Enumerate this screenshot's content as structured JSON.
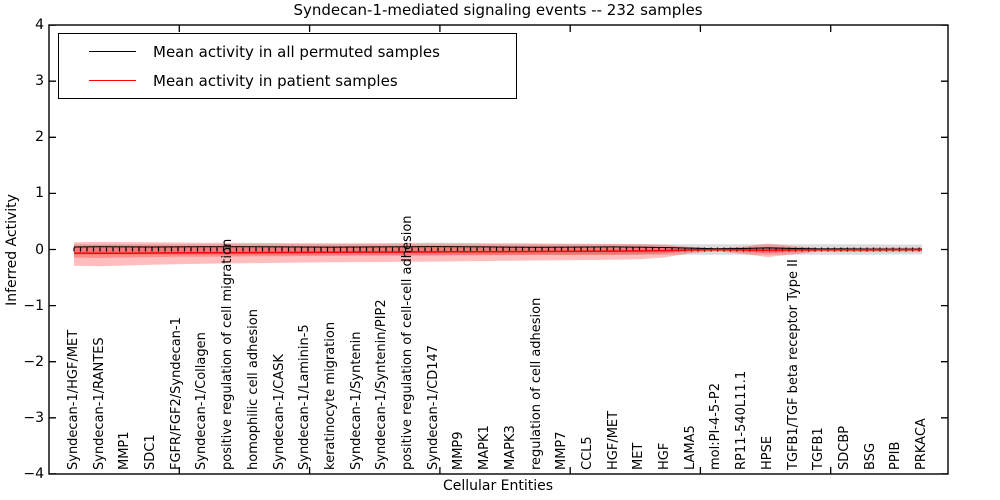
{
  "title": "Syndecan-1-mediated signaling events -- 232 samples",
  "legend": {
    "items": [
      {
        "label": "Mean activity in all permuted samples",
        "color": "#000000"
      },
      {
        "label": "Mean activity in patient samples",
        "color": "#ff0000"
      }
    ]
  },
  "axes": {
    "ylabel": "Inferred Activity",
    "xlabel": "Cellular Entities",
    "yticks": [
      "4",
      "3",
      "2",
      "1",
      "0",
      "−1",
      "−2",
      "−3",
      "−4"
    ],
    "ytick_values": [
      4,
      3,
      2,
      1,
      0,
      -1,
      -2,
      -3,
      -4
    ]
  },
  "chart_data": {
    "type": "line",
    "title": "Syndecan-1-mediated signaling events -- 232 samples",
    "xlabel": "Cellular Entities",
    "ylabel": "Inferred Activity",
    "ylim": [
      -4,
      4
    ],
    "grid": false,
    "legend_position": "upper left",
    "zero_line": 0,
    "categories": [
      "Syndecan-1/HGF/MET",
      "Syndecan-1/RANTES",
      "MMP1",
      "SDC1",
      "FGFR/FGF2/Syndecan-1",
      "Syndecan-1/Collagen",
      "positive regulation of cell migration",
      "homophilic cell adhesion",
      "Syndecan-1/CASK",
      "Syndecan-1/Laminin-5",
      "keratinocyte migration",
      "Syndecan-1/Syntenin",
      "Syndecan-1/Syntenin/PIP2",
      "positive regulation of cell-cell adhesion",
      "Syndecan-1/CD147",
      "MMP9",
      "MAPK1",
      "MAPK3",
      "regulation of cell adhesion",
      "MMP7",
      "CCL5",
      "HGF/MET",
      "MET",
      "HGF",
      "LAMA5",
      "mol:PI-4-5-P2",
      "RP11-540L11.1",
      "HPSE",
      "TGFB1/TGF beta receptor Type II",
      "TGFB1",
      "SDCBP",
      "BSG",
      "PPIB",
      "PRKACA"
    ],
    "series": [
      {
        "name": "Mean activity in all permuted samples",
        "color": "#000000",
        "values": [
          0.045,
          0.048,
          0.046,
          0.044,
          0.046,
          0.048,
          0.05,
          0.048,
          0.046,
          0.044,
          0.043,
          0.044,
          0.046,
          0.05,
          0.052,
          0.05,
          0.046,
          0.042,
          0.04,
          0.042,
          0.044,
          0.046,
          0.042,
          0.036,
          0.025,
          0.015,
          0.018,
          0.028,
          0.018,
          0.01,
          0.01,
          0.008,
          0.008,
          0.008
        ]
      },
      {
        "name": "Mean activity in patient samples",
        "color": "#ff0000",
        "values": [
          -0.065,
          -0.068,
          -0.066,
          -0.063,
          -0.061,
          -0.059,
          -0.057,
          -0.055,
          -0.053,
          -0.051,
          -0.049,
          -0.047,
          -0.046,
          -0.045,
          -0.043,
          -0.041,
          -0.039,
          -0.037,
          -0.035,
          -0.033,
          -0.031,
          -0.029,
          -0.026,
          -0.02,
          -0.008,
          -0.002,
          -0.008,
          -0.015,
          -0.008,
          -0.003,
          -0.004,
          -0.003,
          -0.002,
          -0.001
        ]
      }
    ],
    "bands": [
      {
        "name": "permuted-samples-range",
        "color": "rgba(0,0,0,0.14)",
        "upper": [
          0.095,
          0.095,
          0.095,
          0.095,
          0.095,
          0.095,
          0.095,
          0.095,
          0.095,
          0.095,
          0.095,
          0.095,
          0.095,
          0.095,
          0.095,
          0.095,
          0.095,
          0.095,
          0.095,
          0.095,
          0.095,
          0.095,
          0.095,
          0.095,
          0.095,
          0.095,
          0.095,
          0.095,
          0.095,
          0.095,
          0.093,
          0.092,
          0.09,
          0.088
        ],
        "lower": [
          -0.095,
          -0.095,
          -0.095,
          -0.095,
          -0.095,
          -0.095,
          -0.095,
          -0.095,
          -0.095,
          -0.095,
          -0.095,
          -0.095,
          -0.095,
          -0.095,
          -0.095,
          -0.095,
          -0.095,
          -0.095,
          -0.095,
          -0.095,
          -0.095,
          -0.095,
          -0.095,
          -0.095,
          -0.095,
          -0.095,
          -0.095,
          -0.095,
          -0.095,
          -0.095,
          -0.093,
          -0.092,
          -0.09,
          -0.088
        ]
      },
      {
        "name": "patient-samples-range-outer",
        "color": "rgba(255,0,0,0.26)",
        "upper": [
          0.13,
          0.135,
          0.132,
          0.128,
          0.125,
          0.122,
          0.12,
          0.118,
          0.116,
          0.114,
          0.112,
          0.112,
          0.114,
          0.118,
          0.12,
          0.118,
          0.114,
          0.11,
          0.108,
          0.106,
          0.104,
          0.102,
          0.098,
          0.085,
          0.045,
          0.022,
          0.05,
          0.105,
          0.06,
          0.022,
          0.03,
          0.032,
          0.03,
          0.028
        ],
        "lower": [
          -0.29,
          -0.3,
          -0.285,
          -0.272,
          -0.262,
          -0.255,
          -0.248,
          -0.242,
          -0.238,
          -0.232,
          -0.228,
          -0.224,
          -0.222,
          -0.22,
          -0.215,
          -0.21,
          -0.205,
          -0.2,
          -0.196,
          -0.192,
          -0.188,
          -0.184,
          -0.175,
          -0.14,
          -0.065,
          -0.03,
          -0.075,
          -0.135,
          -0.085,
          -0.035,
          -0.042,
          -0.042,
          -0.04,
          -0.035
        ]
      },
      {
        "name": "patient-samples-range-inner",
        "color": "rgba(255,0,0,0.26)",
        "upper": [
          0.065,
          0.068,
          0.066,
          0.064,
          0.062,
          0.061,
          0.06,
          0.059,
          0.058,
          0.057,
          0.056,
          0.056,
          0.057,
          0.059,
          0.06,
          0.059,
          0.057,
          0.055,
          0.054,
          0.053,
          0.052,
          0.051,
          0.049,
          0.042,
          0.022,
          0.011,
          0.025,
          0.052,
          0.03,
          0.011,
          0.015,
          0.016,
          0.015,
          0.014
        ],
        "lower": [
          -0.145,
          -0.15,
          -0.142,
          -0.136,
          -0.131,
          -0.128,
          -0.124,
          -0.121,
          -0.119,
          -0.116,
          -0.114,
          -0.112,
          -0.111,
          -0.11,
          -0.108,
          -0.105,
          -0.102,
          -0.1,
          -0.098,
          -0.096,
          -0.094,
          -0.092,
          -0.088,
          -0.07,
          -0.032,
          -0.015,
          -0.038,
          -0.068,
          -0.042,
          -0.018,
          -0.021,
          -0.021,
          -0.02,
          -0.018
        ]
      }
    ]
  }
}
